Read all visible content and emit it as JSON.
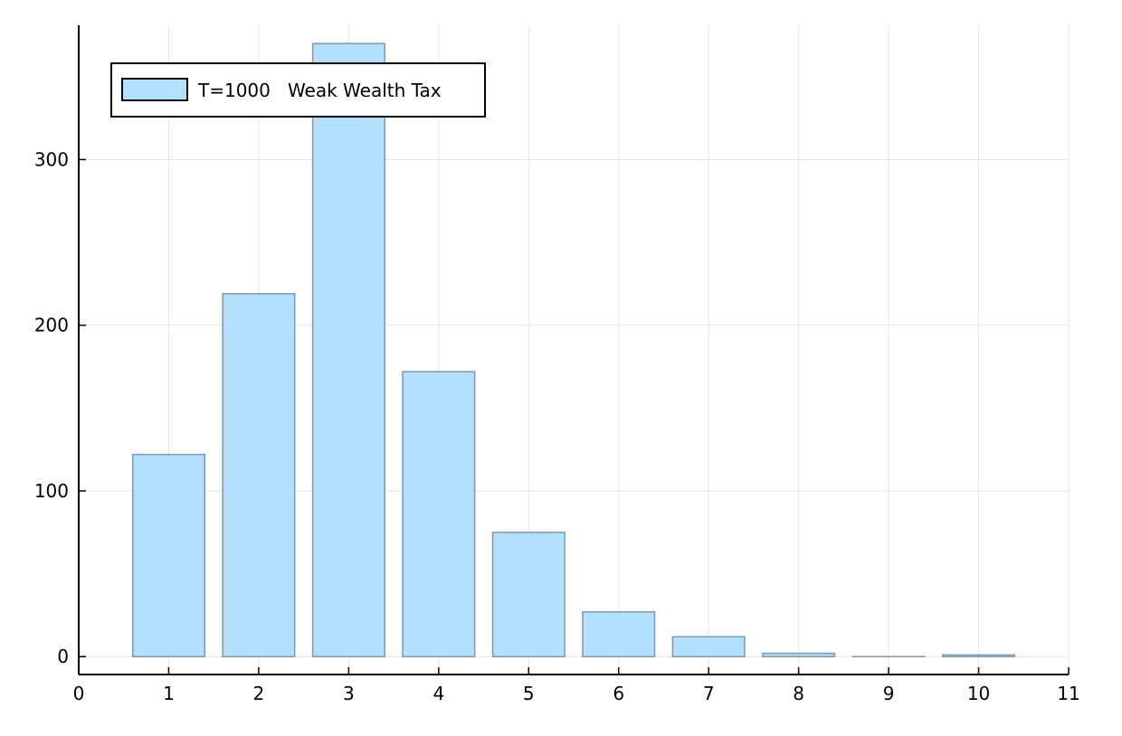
{
  "chart_data": {
    "type": "bar",
    "x": [
      1,
      2,
      3,
      4,
      5,
      6,
      7,
      8,
      9,
      10
    ],
    "series": [
      {
        "name": "T=1000   Weak Wealth Tax",
        "values": [
          122,
          219,
          370,
          172,
          75,
          27,
          12,
          2,
          0,
          1
        ]
      }
    ],
    "xlim": [
      0,
      11
    ],
    "ylim": [
      -10.8,
      381
    ],
    "xticks": [
      0,
      1,
      2,
      3,
      4,
      5,
      6,
      7,
      8,
      9,
      10,
      11
    ],
    "yticks": [
      0,
      100,
      200,
      300
    ],
    "bar_width": 0.8,
    "grid": true,
    "legend_position": "top-left",
    "colors": {
      "bar_fill": "#b3e0ff",
      "bar_stroke": "#7f98aa",
      "axis": "#000000",
      "grid": "#e6e6e6"
    }
  }
}
